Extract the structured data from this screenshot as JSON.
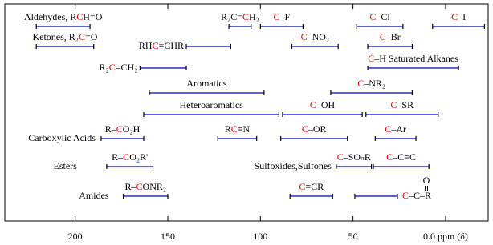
{
  "chart_data": {
    "type": "range",
    "xlim": [
      238,
      -23
    ],
    "xticks": [
      200,
      150,
      100,
      50,
      {
        "value": 0,
        "label": "0.0 ppm (δ)"
      }
    ],
    "bar_color": "#0000cc",
    "items": [
      {
        "label": [
          {
            "text": "Aldehydes, R"
          },
          {
            "text": "C",
            "color": "#e00000"
          },
          {
            "text": "H=O"
          }
        ],
        "range": [
          221,
          192
        ]
      },
      {
        "label": [
          {
            "text": "R₂C="
          },
          {
            "text": "C",
            "color": "#e00000"
          },
          {
            "text": "H₂"
          }
        ],
        "range": [
          117,
          105
        ]
      },
      {
        "label": [
          {
            "text": "C",
            "color": "#e00000"
          },
          {
            "text": "–F"
          }
        ],
        "range": [
          100,
          77
        ]
      },
      {
        "label": [
          {
            "text": "C",
            "color": "#e00000"
          },
          {
            "text": "–Cl"
          }
        ],
        "range": [
          48,
          23
        ]
      },
      {
        "label": [
          {
            "text": "C",
            "color": "#e00000"
          },
          {
            "text": "–I"
          }
        ],
        "range": [
          7,
          -21
        ]
      },
      {
        "label": [
          {
            "text": "Ketones, R₂"
          },
          {
            "text": "C",
            "color": "#e00000"
          },
          {
            "text": "=O"
          }
        ],
        "range": [
          221,
          190
        ]
      },
      {
        "label": [
          {
            "text": "RH"
          },
          {
            "text": "C",
            "color": "#e00000"
          },
          {
            "text": "=CHR"
          }
        ],
        "range": [
          140,
          116
        ]
      },
      {
        "label": [
          {
            "text": "C",
            "color": "#e00000"
          },
          {
            "text": "–NO₂"
          }
        ],
        "range": [
          83,
          58
        ]
      },
      {
        "label": [
          {
            "text": "C",
            "color": "#e00000"
          },
          {
            "text": "–Br"
          }
        ],
        "range": [
          42,
          18
        ]
      },
      {
        "label": [
          {
            "text": "R₂"
          },
          {
            "text": "C",
            "color": "#e00000"
          },
          {
            "text": "=CH₂"
          }
        ],
        "range": [
          165,
          140
        ]
      },
      {
        "label": [
          {
            "text": "C",
            "color": "#e00000"
          },
          {
            "text": "–H  Saturated Alkanes"
          }
        ],
        "range": [
          42,
          -7
        ]
      },
      {
        "label": [
          {
            "text": "Aromatics"
          }
        ],
        "range": [
          160,
          98
        ]
      },
      {
        "label": [
          {
            "text": "C",
            "color": "#e00000"
          },
          {
            "text": "–NR₂"
          }
        ],
        "range": [
          62,
          18
        ]
      },
      {
        "label": [
          {
            "text": "Heteroaromatics"
          }
        ],
        "range": [
          163,
          90
        ]
      },
      {
        "label": [
          {
            "text": "C",
            "color": "#e00000"
          },
          {
            "text": "–OH"
          }
        ],
        "range": [
          88,
          45
        ]
      },
      {
        "label": [
          {
            "text": "C",
            "color": "#e00000"
          },
          {
            "text": "–SR"
          }
        ],
        "range": [
          43,
          4
        ]
      },
      {
        "name": "Carboxylic Acids",
        "label": [
          {
            "text": "R–"
          },
          {
            "text": "C",
            "color": "#e00000"
          },
          {
            "text": "O₂H"
          }
        ],
        "range": [
          186,
          163
        ]
      },
      {
        "label": [
          {
            "text": "R"
          },
          {
            "text": "C",
            "color": "#e00000"
          },
          {
            "text": "≡N"
          }
        ],
        "range": [
          123,
          102
        ]
      },
      {
        "label": [
          {
            "text": "C",
            "color": "#e00000"
          },
          {
            "text": "–OR"
          }
        ],
        "range": [
          89,
          53
        ]
      },
      {
        "label": [
          {
            "text": "C",
            "color": "#e00000"
          },
          {
            "text": "–Ar"
          }
        ],
        "range": [
          38,
          16
        ]
      },
      {
        "name": "Esters",
        "label": [
          {
            "text": "R–"
          },
          {
            "text": "C",
            "color": "#e00000"
          },
          {
            "text": "O₂R'"
          }
        ],
        "range": [
          183,
          158
        ]
      },
      {
        "name": "Sulfoxides,Sulfones",
        "label": [
          {
            "text": "C",
            "color": "#e00000"
          },
          {
            "text": "–SOₙR"
          }
        ],
        "range": [
          59,
          40
        ]
      },
      {
        "label": [
          {
            "text": "C",
            "color": "#e00000"
          },
          {
            "text": "–C≡C"
          }
        ],
        "range": [
          39,
          9
        ]
      },
      {
        "name": "Amides",
        "label": [
          {
            "text": "R–"
          },
          {
            "text": "C",
            "color": "#e00000"
          },
          {
            "text": "ONR₂"
          }
        ],
        "range": [
          174,
          150
        ]
      },
      {
        "label": [
          {
            "text": "C",
            "color": "#e00000"
          },
          {
            "text": "≡CR"
          }
        ],
        "range": [
          84,
          61
        ]
      },
      {
        "label": [
          {
            "text": "C",
            "color": "#e00000"
          },
          {
            "text": "–C–R"
          }
        ],
        "above": "O",
        "range": [
          49,
          26
        ]
      }
    ]
  }
}
